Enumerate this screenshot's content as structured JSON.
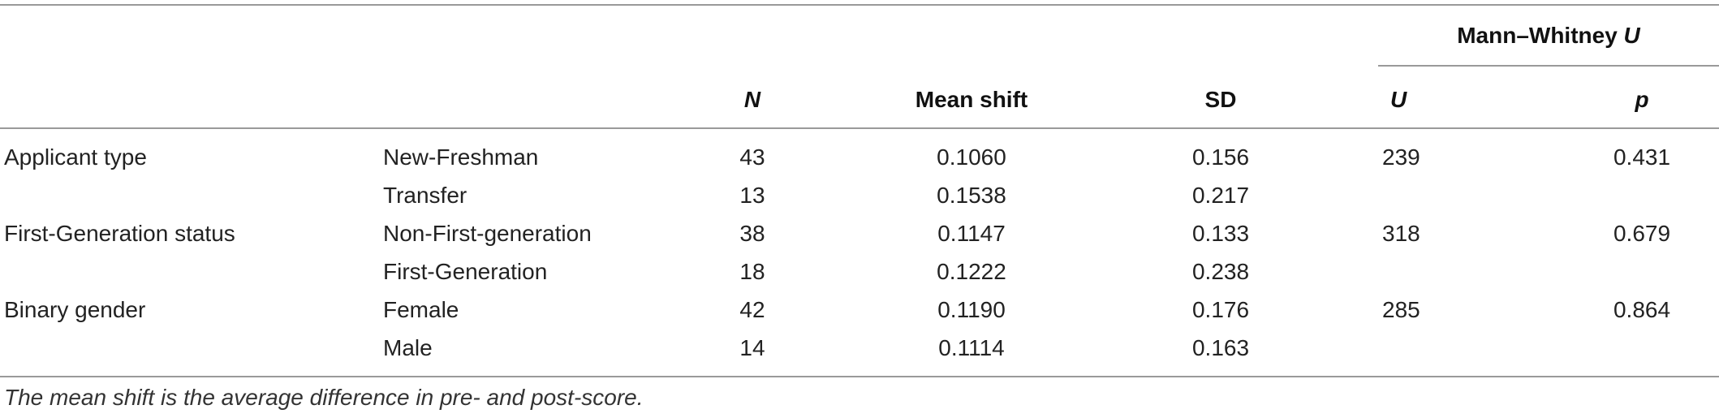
{
  "table": {
    "header": {
      "group_label": "Mann–Whitney ",
      "group_label_italic": "U",
      "n": "N",
      "mean_shift": "Mean shift",
      "sd": "SD",
      "u": "U",
      "p": "p"
    },
    "rows": [
      {
        "group": "Applicant type",
        "sub": "New-Freshman",
        "n": "43",
        "mean": "0.1060",
        "sd": "0.156",
        "u": "239",
        "p": "0.431"
      },
      {
        "group": "",
        "sub": "Transfer",
        "n": "13",
        "mean": "0.1538",
        "sd": "0.217",
        "u": "",
        "p": ""
      },
      {
        "group": "First-Generation status",
        "sub": "Non-First-generation",
        "n": "38",
        "mean": "0.1147",
        "sd": "0.133",
        "u": "318",
        "p": "0.679"
      },
      {
        "group": "",
        "sub": "First-Generation",
        "n": "18",
        "mean": "0.1222",
        "sd": "0.238",
        "u": "",
        "p": ""
      },
      {
        "group": "Binary gender",
        "sub": "Female",
        "n": "42",
        "mean": "0.1190",
        "sd": "0.176",
        "u": "285",
        "p": "0.864"
      },
      {
        "group": "",
        "sub": "Male",
        "n": "14",
        "mean": "0.1114",
        "sd": "0.163",
        "u": "",
        "p": ""
      }
    ],
    "footnote": "The mean shift is the average difference in pre- and post-score."
  }
}
